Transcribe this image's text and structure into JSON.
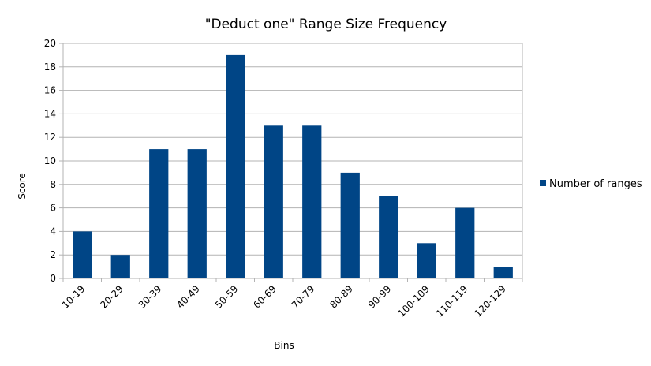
{
  "chart_data": {
    "type": "bar",
    "title": "\"Deduct one\" Range Size Frequency",
    "xlabel": "Bins",
    "ylabel": "Score",
    "ylim": [
      0,
      20
    ],
    "yticks": [
      0,
      2,
      4,
      6,
      8,
      10,
      12,
      14,
      16,
      18,
      20
    ],
    "grid": true,
    "legend_position": "right",
    "categories": [
      "10-19",
      "20-29",
      "30-39",
      "40-49",
      "50-59",
      "60-69",
      "70-79",
      "80-89",
      "90-99",
      "100-109",
      "110-119",
      "120-129"
    ],
    "series": [
      {
        "name": "Number of ranges",
        "color": "#004586",
        "values": [
          4,
          2,
          11,
          11,
          19,
          13,
          13,
          9,
          7,
          3,
          6,
          1
        ]
      }
    ]
  }
}
